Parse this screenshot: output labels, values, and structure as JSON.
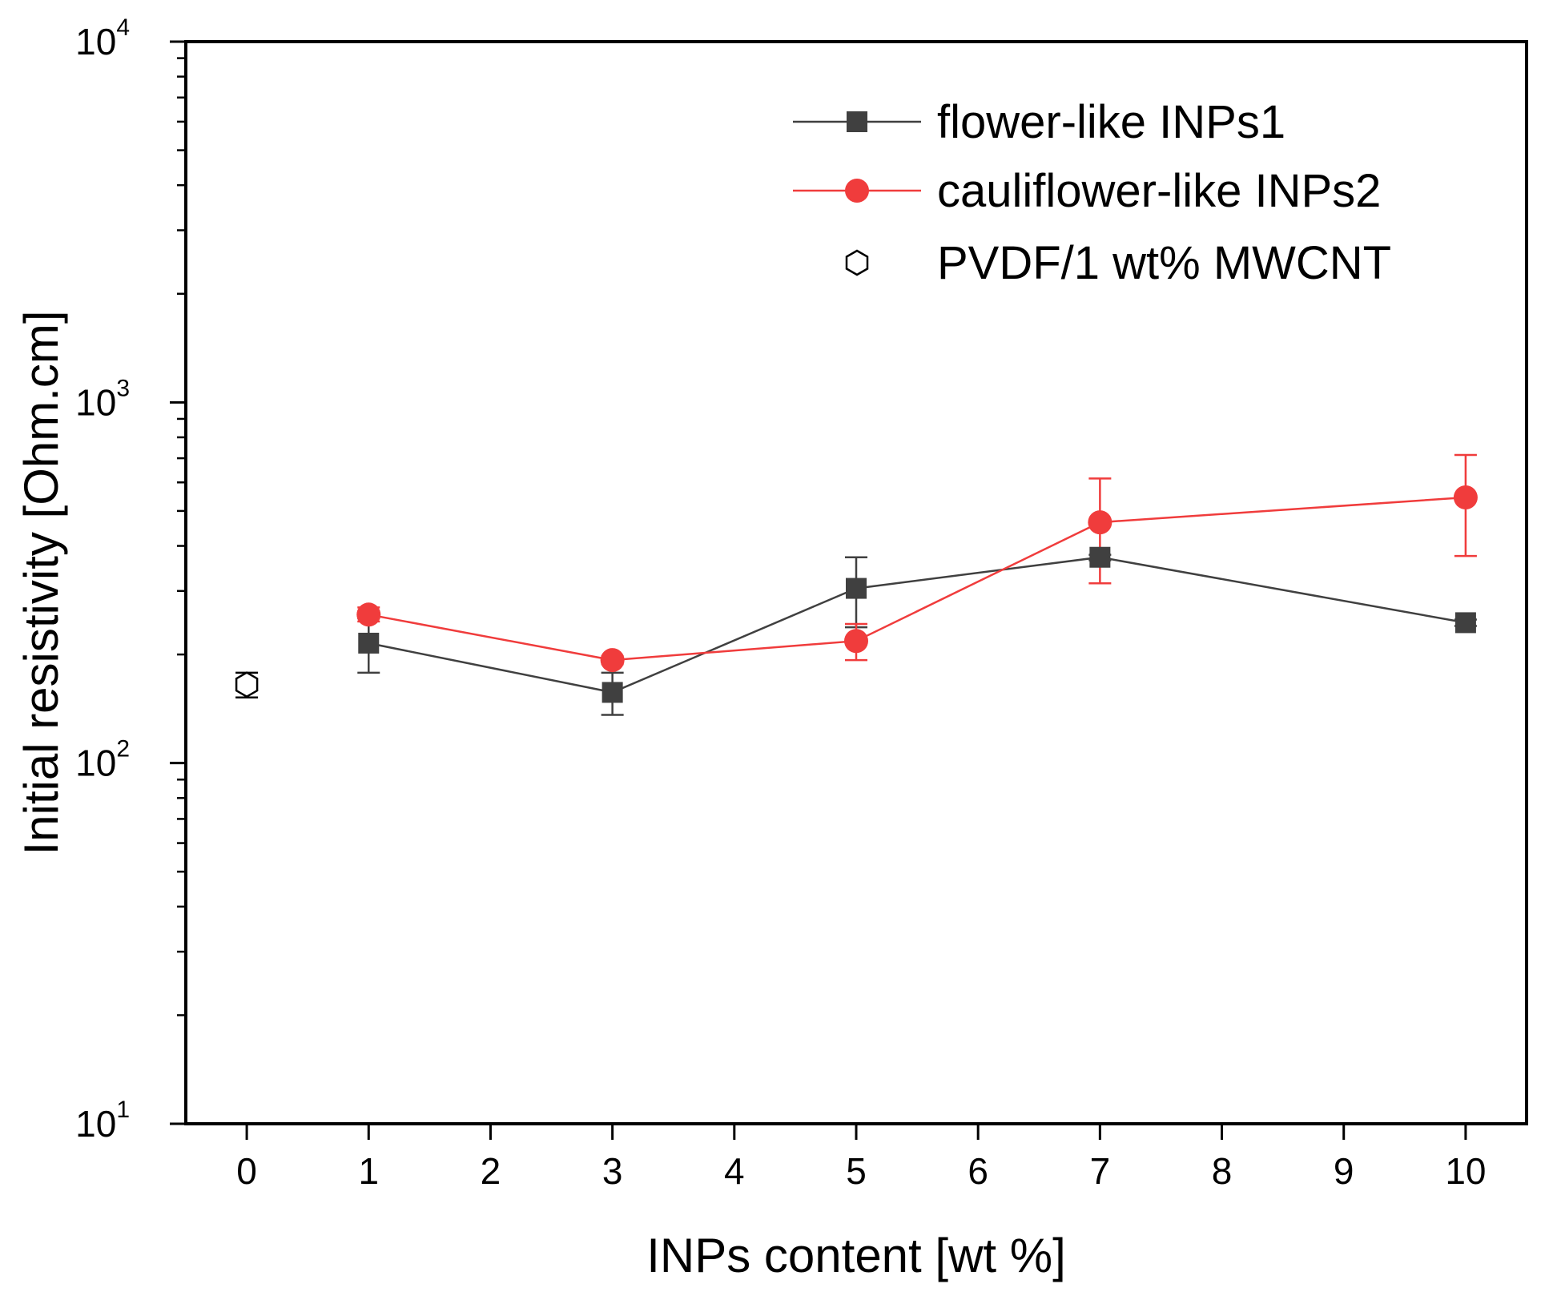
{
  "chart_data": {
    "type": "line",
    "title": "",
    "xlabel": "INPs content [wt %]",
    "ylabel": "Initial resistivity [Ohm.cm]",
    "yscale": "log",
    "xlim": [
      -0.5,
      10.5
    ],
    "ylim": [
      10,
      10000
    ],
    "grid": false,
    "legend_position": "top-right",
    "x_ticks": [
      {
        "value": 0,
        "label": "0"
      },
      {
        "value": 1,
        "label": "1"
      },
      {
        "value": 2,
        "label": "2"
      },
      {
        "value": 3,
        "label": "3"
      },
      {
        "value": 4,
        "label": "4"
      },
      {
        "value": 5,
        "label": "5"
      },
      {
        "value": 6,
        "label": "6"
      },
      {
        "value": 7,
        "label": "7"
      },
      {
        "value": 8,
        "label": "8"
      },
      {
        "value": 9,
        "label": "9"
      },
      {
        "value": 10,
        "label": "10"
      }
    ],
    "y_ticks": [
      {
        "value": 10,
        "base": "10",
        "exp": "1"
      },
      {
        "value": 100,
        "base": "10",
        "exp": "2"
      },
      {
        "value": 1000,
        "base": "10",
        "exp": "3"
      },
      {
        "value": 10000,
        "base": "10",
        "exp": "4"
      }
    ],
    "series": [
      {
        "name": "flower-like INPs1",
        "marker": "square",
        "color": "#404040",
        "connected": true,
        "points": [
          {
            "x": 1,
            "y": 215,
            "err_low": 178,
            "err_high": 252
          },
          {
            "x": 3,
            "y": 157,
            "err_low": 136,
            "err_high": 178
          },
          {
            "x": 5,
            "y": 305,
            "err_low": 238,
            "err_high": 372
          },
          {
            "x": 7,
            "y": 372,
            "err_low": 365,
            "err_high": 378
          },
          {
            "x": 10,
            "y": 245,
            "err_low": 240,
            "err_high": 250
          }
        ]
      },
      {
        "name": "cauliflower-like INPs2",
        "marker": "circle",
        "color": "#f03c3c",
        "connected": true,
        "points": [
          {
            "x": 1,
            "y": 258,
            "err_low": 247,
            "err_high": 270
          },
          {
            "x": 3,
            "y": 193,
            "err_low": 188,
            "err_high": 198
          },
          {
            "x": 5,
            "y": 218,
            "err_low": 193,
            "err_high": 243
          },
          {
            "x": 7,
            "y": 465,
            "err_low": 315,
            "err_high": 615
          },
          {
            "x": 10,
            "y": 545,
            "err_low": 375,
            "err_high": 715
          }
        ]
      },
      {
        "name": "PVDF/1 wt% MWCNT",
        "marker": "hexagon-open",
        "color": "#000000",
        "connected": false,
        "points": [
          {
            "x": 0,
            "y": 165,
            "err_low": 152,
            "err_high": 178
          }
        ]
      }
    ]
  }
}
